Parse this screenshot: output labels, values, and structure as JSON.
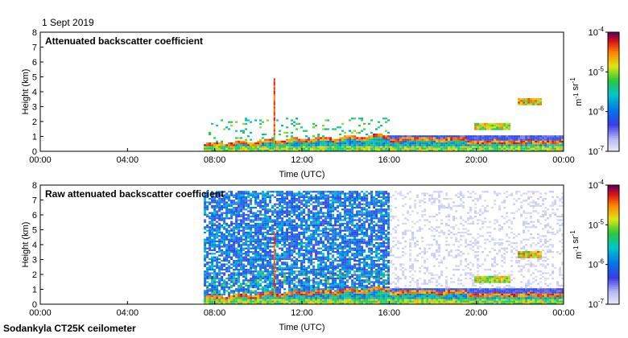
{
  "date_label": "1 Sept 2019",
  "footer_label": "Sodankyla CT25K ceilometer",
  "chart_data": [
    {
      "type": "heatmap",
      "title": "Attenuated backscatter coefficient",
      "xlabel": "Time (UTC)",
      "ylabel": "Height (km)",
      "xlim": [
        0,
        24
      ],
      "ylim": [
        0,
        8
      ],
      "x_ticks": [
        "00:00",
        "04:00",
        "08:00",
        "12:00",
        "16:00",
        "20:00",
        "00:00"
      ],
      "y_ticks": [
        0,
        1,
        2,
        3,
        4,
        5,
        6,
        7,
        8
      ],
      "data_start_hour": 7.5,
      "colorbar": {
        "scale": "log",
        "range": [
          1e-07,
          0.0001
        ],
        "tick_bases": [
          "10",
          "10",
          "10",
          "10"
        ],
        "tick_exponents": [
          "-7",
          "-6",
          "-5",
          "-4"
        ],
        "label": "m-1 sr-1"
      }
    },
    {
      "type": "heatmap",
      "title": "Raw attenuated backscatter coefficient",
      "xlabel": "Time (UTC)",
      "ylabel": "Height (km)",
      "xlim": [
        0,
        24
      ],
      "ylim": [
        0,
        8
      ],
      "x_ticks": [
        "00:00",
        "04:00",
        "08:00",
        "12:00",
        "16:00",
        "20:00",
        "00:00"
      ],
      "y_ticks": [
        0,
        1,
        2,
        3,
        4,
        5,
        6,
        7,
        8
      ],
      "data_start_hour": 7.5,
      "colorbar": {
        "scale": "log",
        "range": [
          1e-07,
          0.0001
        ],
        "tick_bases": [
          "10",
          "10",
          "10",
          "10"
        ],
        "tick_exponents": [
          "-7",
          "-6",
          "-5",
          "-4"
        ],
        "label": "m-1 sr-1"
      }
    }
  ]
}
